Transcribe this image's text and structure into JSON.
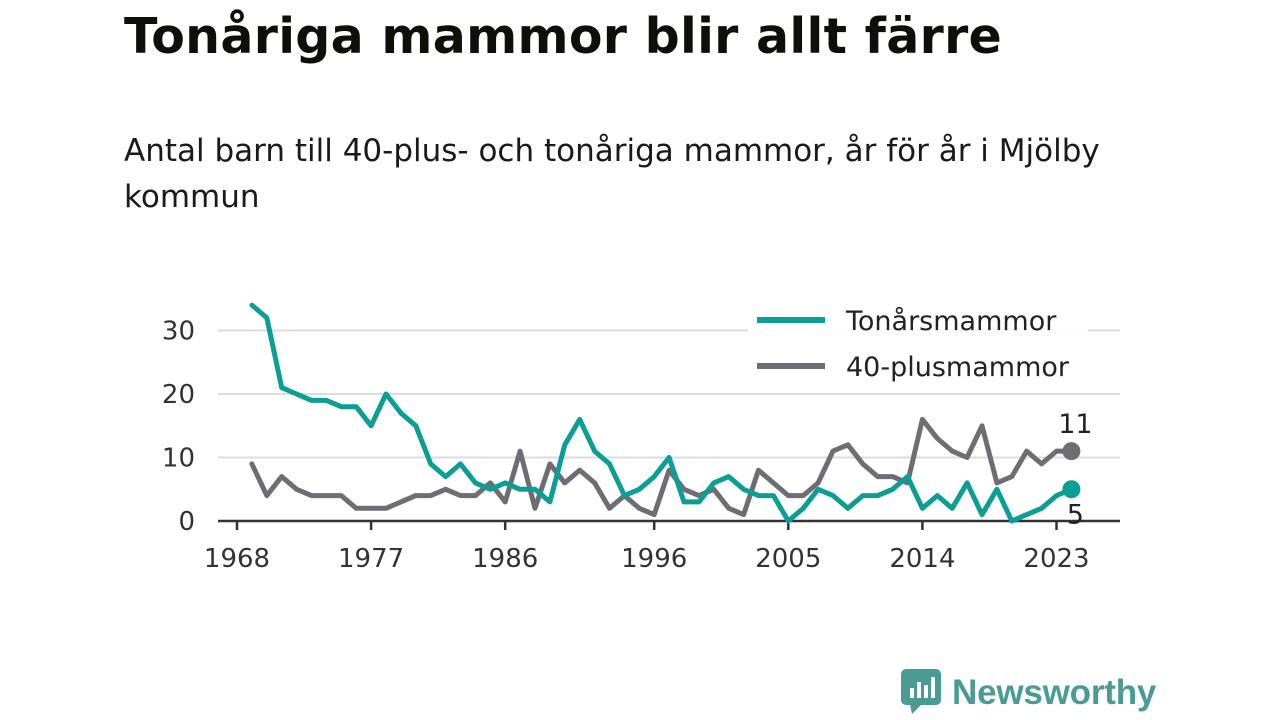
{
  "header": {
    "title": "Tonåriga mammor blir allt färre",
    "subtitle": "Antal barn till 40-plus- och tonåriga mammor, år för år i Mjölby kommun"
  },
  "brand": {
    "name": "Newsworthy",
    "icon": "newsworthy-logo-icon",
    "color": "#4a9b94"
  },
  "chart_data": {
    "type": "line",
    "title": "Tonåriga mammor blir allt färre",
    "subtitle": "Antal barn till 40-plus- och tonåriga mammor, år för år i Mjölby kommun",
    "xlabel": "",
    "ylabel": "",
    "x": [
      1969,
      1970,
      1971,
      1972,
      1973,
      1974,
      1975,
      1976,
      1977,
      1978,
      1979,
      1980,
      1981,
      1982,
      1983,
      1984,
      1985,
      1986,
      1987,
      1988,
      1989,
      1990,
      1991,
      1992,
      1993,
      1994,
      1995,
      1996,
      1997,
      1998,
      1999,
      2000,
      2001,
      2002,
      2003,
      2004,
      2005,
      2006,
      2007,
      2008,
      2009,
      2010,
      2011,
      2012,
      2013,
      2014,
      2015,
      2016,
      2017,
      2018,
      2019,
      2020,
      2021,
      2022,
      2023,
      2024
    ],
    "xlim": [
      1967,
      2027
    ],
    "ylim": [
      0,
      33
    ],
    "x_ticks": [
      "1968",
      "1977",
      "1986",
      "1996",
      "2005",
      "2014",
      "2023"
    ],
    "y_ticks": [
      "0",
      "10",
      "20",
      "30"
    ],
    "grid": "horizontal",
    "legend_position": "top-right",
    "series": [
      {
        "name": "Tonårsmammor",
        "color": "#0b9e95",
        "values": [
          34,
          32,
          21,
          20,
          19,
          19,
          18,
          18,
          15,
          20,
          17,
          15,
          9,
          7,
          9,
          6,
          5,
          6,
          5,
          5,
          3,
          12,
          16,
          11,
          9,
          4,
          5,
          7,
          10,
          3,
          3,
          6,
          7,
          5,
          4,
          4,
          0,
          2,
          5,
          4,
          2,
          4,
          4,
          5,
          7,
          2,
          4,
          2,
          6,
          1,
          5,
          0,
          1,
          2,
          4,
          5
        ],
        "end_label": "5"
      },
      {
        "name": "40-plusmammor",
        "color": "#6e6d73",
        "values": [
          9,
          4,
          7,
          5,
          4,
          4,
          4,
          2,
          2,
          2,
          3,
          4,
          4,
          5,
          4,
          4,
          6,
          3,
          11,
          2,
          9,
          6,
          8,
          6,
          2,
          4,
          2,
          1,
          8,
          5,
          4,
          5,
          2,
          1,
          8,
          6,
          4,
          4,
          6,
          11,
          12,
          9,
          7,
          7,
          6,
          16,
          13,
          11,
          10,
          15,
          6,
          7,
          11,
          9,
          11,
          11
        ],
        "end_label": "11"
      }
    ]
  }
}
